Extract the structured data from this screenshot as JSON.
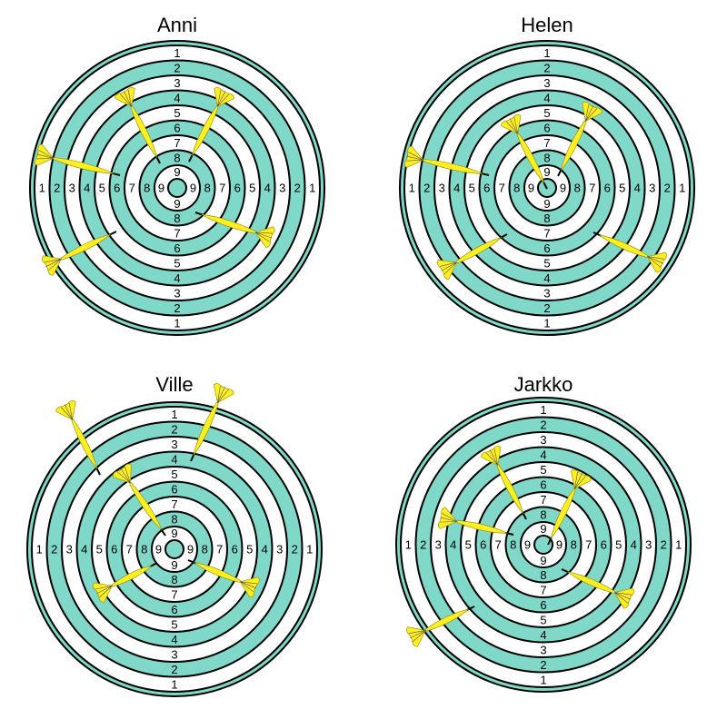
{
  "boards": [
    {
      "player": "Anni"
    },
    {
      "player": "Helen"
    },
    {
      "player": "Ville"
    },
    {
      "player": "Jarkko"
    }
  ],
  "ring_labels": [
    "1",
    "2",
    "3",
    "4",
    "5",
    "6",
    "7",
    "8",
    "9"
  ],
  "colors": {
    "ring_teal": "#80d8c8",
    "ring_white": "#ffffff",
    "dart_yellow": "#ffee22",
    "outline": "#000000"
  },
  "icons": {
    "dart": "dart-icon",
    "board": "dartboard"
  }
}
